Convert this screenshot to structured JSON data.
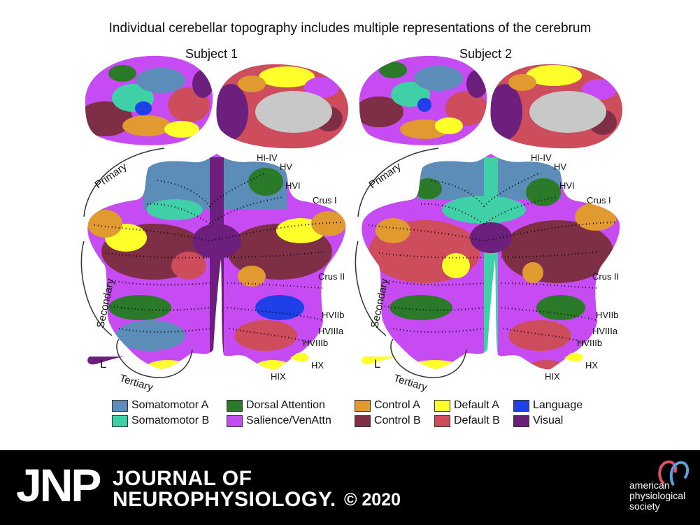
{
  "title": "Individual cerebellar topography includes multiple representations of the cerebrum",
  "subjects": [
    {
      "label": "Subject 1",
      "hemisphere_letter": "L"
    },
    {
      "label": "Subject 2",
      "hemisphere_letter": "L"
    }
  ],
  "lobule_labels": {
    "hi_iv": "HI-IV",
    "hv": "HV",
    "hvi": "HVI",
    "crus1": "Crus I",
    "crus2": "Crus II",
    "hviib": "HVIIb",
    "hviiia": "HVIIIa",
    "hviiib": "HVIIIb",
    "hix": "HIX",
    "hx": "HX"
  },
  "representation_labels": {
    "primary": "Primary",
    "secondary": "Secondary",
    "tertiary": "Tertiary"
  },
  "legend": [
    {
      "label": "Somatomotor A",
      "color": "#5b8db8"
    },
    {
      "label": "Somatomotor B",
      "color": "#3fd0a8"
    },
    {
      "label": "Dorsal Attention",
      "color": "#2a7a2a"
    },
    {
      "label": "Salience/VenAttn",
      "color": "#c64bf2"
    },
    {
      "label": "Control A",
      "color": "#e09a30"
    },
    {
      "label": "Control B",
      "color": "#7f2f45"
    },
    {
      "label": "Default A",
      "color": "#ffff2a"
    },
    {
      "label": "Default B",
      "color": "#cd4d5d"
    },
    {
      "label": "Language",
      "color": "#1f3fe8"
    },
    {
      "label": "Visual",
      "color": "#6c1f7c"
    }
  ],
  "footer": {
    "journal_abbrev": "JNP",
    "journal_line1": "JOURNAL OF",
    "journal_line2": "NEUROPHYSIOLOGY.",
    "copyright": "© 2020",
    "publisher_lines": [
      "american",
      "physiological",
      "society"
    ]
  }
}
